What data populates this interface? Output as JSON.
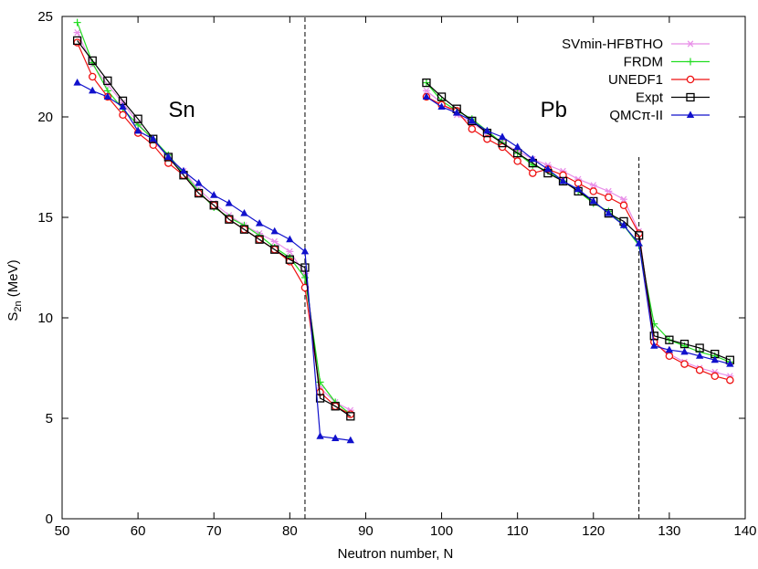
{
  "chart_data": {
    "type": "line",
    "xlabel": "Neutron number, N",
    "ylabel": {
      "main": "S",
      "sub": "2n",
      "rest": " (MeV)"
    },
    "xlim": [
      50,
      140
    ],
    "ylim": [
      0,
      25
    ],
    "xticks": [
      "50",
      "60",
      "70",
      "80",
      "90",
      "100",
      "110",
      "120",
      "130",
      "140"
    ],
    "yticks": [
      "0",
      "5",
      "10",
      "15",
      "20",
      "25"
    ],
    "grid": false,
    "legend_position": "top-right",
    "vlines": [
      {
        "x": 82,
        "ymin": 0,
        "ymax": 25
      },
      {
        "x": 126,
        "ymin": 0,
        "ymax": 18
      }
    ],
    "annotations": [
      {
        "text": "Sn",
        "x": 64,
        "y": 20
      },
      {
        "text": "Pb",
        "x": 113,
        "y": 20
      }
    ],
    "series": [
      {
        "name": "SVmin-HFBTHO",
        "color": "#e88ee8",
        "marker": "asterisk",
        "segments": [
          {
            "x": [
              52,
              54,
              56,
              58,
              60,
              62,
              64,
              66,
              68,
              70,
              72,
              74,
              76,
              78,
              80,
              82,
              84,
              86,
              88
            ],
            "y": [
              24.2,
              22.6,
              21.6,
              20.7,
              19.7,
              18.8,
              18.0,
              17.3,
              16.4,
              15.7,
              15.1,
              14.6,
              14.2,
              13.8,
              13.3,
              12.2,
              6.5,
              5.8,
              5.4
            ]
          },
          {
            "x": [
              98,
              100,
              102,
              104,
              106,
              108,
              110,
              112,
              114,
              116,
              118,
              120,
              122,
              124,
              126,
              128,
              130,
              132,
              134,
              136,
              138
            ],
            "y": [
              21.3,
              20.7,
              20.1,
              19.7,
              19.2,
              18.7,
              18.3,
              17.9,
              17.6,
              17.3,
              16.9,
              16.6,
              16.3,
              15.9,
              14.3,
              8.8,
              8.2,
              7.8,
              7.5,
              7.3,
              7.1
            ]
          }
        ]
      },
      {
        "name": "FRDM",
        "color": "#22dd22",
        "marker": "plus",
        "segments": [
          {
            "x": [
              52,
              54,
              56,
              58,
              60,
              62,
              64,
              66,
              68,
              70,
              72,
              74,
              76,
              78,
              80,
              82,
              84,
              86,
              88
            ],
            "y": [
              24.7,
              22.7,
              21.3,
              20.4,
              19.6,
              18.9,
              18.1,
              17.2,
              16.3,
              15.5,
              15.0,
              14.6,
              14.1,
              13.5,
              13.0,
              12.0,
              6.8,
              5.8,
              5.2
            ]
          },
          {
            "x": [
              98,
              100,
              102,
              104,
              106,
              108,
              110,
              112,
              114,
              116,
              118,
              120,
              122,
              124,
              126,
              128,
              130,
              132,
              134,
              136,
              138
            ],
            "y": [
              21.7,
              20.8,
              20.3,
              19.9,
              19.3,
              18.7,
              18.2,
              17.6,
              17.3,
              16.8,
              16.3,
              15.7,
              15.3,
              14.6,
              13.6,
              9.7,
              8.9,
              8.6,
              8.3,
              8.1,
              7.8
            ]
          }
        ]
      },
      {
        "name": "UNEDF1",
        "color": "#ee1111",
        "marker": "circle",
        "segments": [
          {
            "x": [
              52,
              54,
              56,
              58,
              60,
              62,
              64,
              66,
              68,
              70,
              72,
              74,
              76,
              78,
              80,
              82,
              84,
              86,
              88
            ],
            "y": [
              23.7,
              22.0,
              21.0,
              20.1,
              19.2,
              18.6,
              17.7,
              17.1,
              16.2,
              15.6,
              14.9,
              14.4,
              13.9,
              13.4,
              12.8,
              11.5,
              6.3,
              5.6,
              5.2
            ]
          },
          {
            "x": [
              98,
              100,
              102,
              104,
              106,
              108,
              110,
              112,
              114,
              116,
              118,
              120,
              122,
              124,
              126,
              128,
              130,
              132,
              134,
              136,
              138
            ],
            "y": [
              21.0,
              20.6,
              20.3,
              19.4,
              18.9,
              18.5,
              17.8,
              17.2,
              17.4,
              17.1,
              16.7,
              16.3,
              16.0,
              15.6,
              14.2,
              8.8,
              8.1,
              7.7,
              7.4,
              7.1,
              6.9
            ]
          }
        ]
      },
      {
        "name": "Expt",
        "color": "#000000",
        "marker": "square",
        "segments": [
          {
            "x": [
              52,
              54,
              56,
              58,
              60,
              62,
              64,
              66,
              68,
              70,
              72,
              74,
              76,
              78,
              80,
              82,
              84,
              86,
              88
            ],
            "y": [
              23.8,
              22.8,
              21.8,
              20.8,
              19.9,
              18.9,
              18.0,
              17.1,
              16.2,
              15.6,
              14.9,
              14.4,
              13.9,
              13.4,
              12.9,
              12.5,
              6.0,
              5.6,
              5.1
            ]
          },
          {
            "x": [
              98,
              100,
              102,
              104,
              106,
              108,
              110,
              112,
              114,
              116,
              118,
              120,
              122,
              124,
              126,
              128,
              130,
              132,
              134,
              136,
              138
            ],
            "y": [
              21.7,
              21.0,
              20.4,
              19.8,
              19.2,
              18.7,
              18.2,
              17.7,
              17.2,
              16.8,
              16.3,
              15.8,
              15.2,
              14.8,
              14.1,
              9.1,
              8.9,
              8.7,
              8.5,
              8.2,
              7.9
            ]
          }
        ]
      },
      {
        "name": "QMCπ-II",
        "color": "#1111cc",
        "marker": "triangle",
        "segments": [
          {
            "x": [
              52,
              54,
              56,
              58,
              60,
              62,
              64,
              66,
              68,
              70,
              72,
              74,
              76,
              78,
              80,
              82,
              84,
              86,
              88
            ],
            "y": [
              21.7,
              21.3,
              21.0,
              20.5,
              19.3,
              18.9,
              18.0,
              17.3,
              16.7,
              16.1,
              15.7,
              15.2,
              14.7,
              14.3,
              13.9,
              13.3,
              4.1,
              4.0,
              3.9
            ]
          },
          {
            "x": [
              98,
              100,
              102,
              104,
              106,
              108,
              110,
              112,
              114,
              116,
              118,
              120,
              122,
              124,
              126,
              128,
              130,
              132,
              134,
              136,
              138
            ],
            "y": [
              21.0,
              20.5,
              20.2,
              19.8,
              19.3,
              19.0,
              18.5,
              17.9,
              17.4,
              16.8,
              16.4,
              15.8,
              15.2,
              14.6,
              13.7,
              8.6,
              8.4,
              8.3,
              8.1,
              7.9,
              7.7
            ]
          }
        ]
      }
    ]
  }
}
